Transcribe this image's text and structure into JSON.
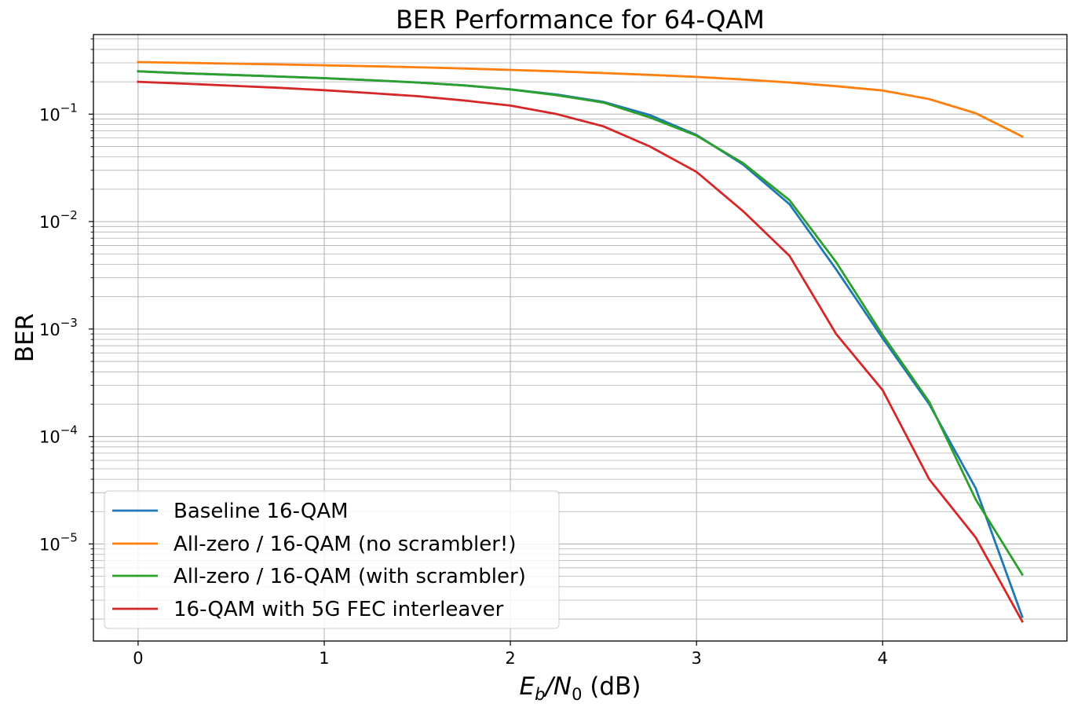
{
  "chart_data": {
    "type": "line",
    "title": "BER Performance for 64-QAM",
    "xlabel": {
      "main": "E",
      "sub1": "b",
      "slash": "/N",
      "sub2": "0",
      "unit": " (dB)"
    },
    "ylabel": "BER",
    "yscale": "log",
    "xlim": [
      -0.24,
      4.99
    ],
    "ylim": [
      1.25e-06,
      0.55
    ],
    "grid": true,
    "legend_loc": "lower left",
    "x_ticks": [
      "0",
      "1",
      "2",
      "3",
      "4"
    ],
    "y_ticks": [
      {
        "base": "10",
        "exp": "−1"
      },
      {
        "base": "10",
        "exp": "−2"
      },
      {
        "base": "10",
        "exp": "−3"
      },
      {
        "base": "10",
        "exp": "−4"
      },
      {
        "base": "10",
        "exp": "−5"
      }
    ],
    "x": [
      0,
      0.25,
      0.5,
      0.75,
      1.0,
      1.25,
      1.5,
      1.75,
      2.0,
      2.25,
      2.5,
      2.75,
      3.0,
      3.25,
      3.5,
      3.75,
      4.0,
      4.25,
      4.5,
      4.75
    ],
    "series": [
      {
        "name": "Baseline 16-QAM",
        "color": "#1f77b4",
        "values": [
          0.25,
          0.24,
          0.232,
          0.224,
          0.216,
          0.207,
          0.197,
          0.185,
          0.17,
          0.152,
          0.13,
          0.098,
          0.064,
          0.034,
          0.0145,
          0.0036,
          0.00082,
          0.0002,
          3.3e-05,
          2.1e-06
        ]
      },
      {
        "name": "All-zero / 16-QAM (no scrambler!)",
        "color": "#ff7f0e",
        "values": [
          0.305,
          0.3,
          0.295,
          0.29,
          0.285,
          0.279,
          0.273,
          0.266,
          0.258,
          0.25,
          0.241,
          0.232,
          0.222,
          0.21,
          0.197,
          0.182,
          0.166,
          0.138,
          0.102,
          0.062
        ]
      },
      {
        "name": "All-zero / 16-QAM (with scrambler)",
        "color": "#2ca02c",
        "values": [
          0.25,
          0.24,
          0.232,
          0.224,
          0.216,
          0.207,
          0.197,
          0.185,
          0.17,
          0.15,
          0.128,
          0.093,
          0.063,
          0.035,
          0.0158,
          0.0042,
          0.00088,
          0.00021,
          2.6e-05,
          5.2e-06
        ]
      },
      {
        "name": "16-QAM with 5G FEC interleaver",
        "color": "#d62728",
        "values": [
          0.2,
          0.192,
          0.184,
          0.176,
          0.167,
          0.157,
          0.147,
          0.134,
          0.12,
          0.1,
          0.077,
          0.05,
          0.029,
          0.0125,
          0.0048,
          0.0009,
          0.00027,
          4e-05,
          1.15e-05,
          1.9e-06
        ]
      }
    ]
  }
}
